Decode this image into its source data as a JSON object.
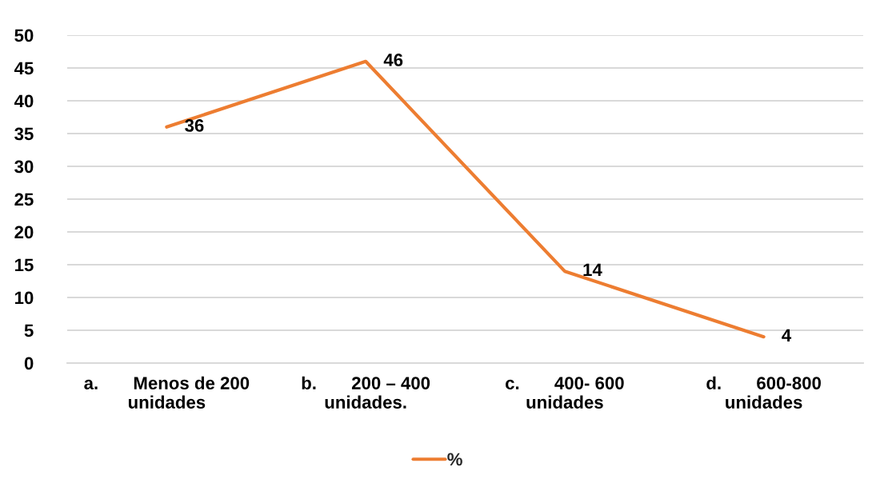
{
  "chart_data": {
    "type": "line",
    "categories": [
      "a.       Menos de 200\nunidades",
      "b.       200 – 400\nunidades.",
      "c.       400- 600\nunidades",
      "d.       600-800\nunidades"
    ],
    "series": [
      {
        "name": "%",
        "color": "#ed7d31",
        "values": [
          36,
          46,
          14,
          4
        ]
      }
    ],
    "ylim": [
      0,
      50
    ],
    "yticks": [
      0,
      5,
      10,
      15,
      20,
      25,
      30,
      35,
      40,
      45,
      50
    ],
    "grid": "y",
    "legend": "bottom",
    "data_labels": true,
    "line_style": "solid"
  }
}
